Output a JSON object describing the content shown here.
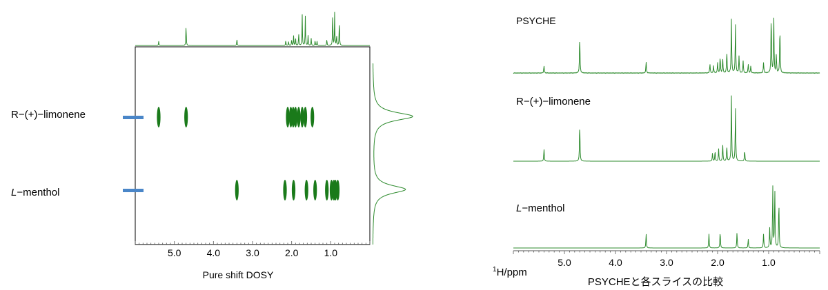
{
  "colors": {
    "spectrum": "#2e8b2e",
    "contour": "#1a7a1a",
    "marker": "#4a86c8",
    "axis": "#555555",
    "frame": "#000000"
  },
  "left_panel": {
    "xlabel": "Pure shift DOSY",
    "row_labels": [
      {
        "prefix": "",
        "italic": "",
        "text": "R−(+)−limonene"
      },
      {
        "prefix": "",
        "italic": "L",
        "text": "−menthol"
      }
    ]
  },
  "right_panel": {
    "trace_labels": [
      {
        "italic": "",
        "text": "PSYCHE"
      },
      {
        "italic": "",
        "text": "R−(+)−limonene"
      },
      {
        "italic": "L",
        "text": "−menthol"
      }
    ],
    "unit_sup": "1",
    "unit_text": "H/ppm",
    "caption": "PSYCHEと各スライスの比較"
  },
  "chart_data": [
    {
      "type": "heatmap",
      "title": "",
      "xlabel": "Pure shift DOSY",
      "x_reversed": true,
      "xlim": [
        6.0,
        0.0
      ],
      "x_ticks": [
        {
          "value": 5.0,
          "label": "5.0"
        },
        {
          "value": 4.0,
          "label": "4.0"
        },
        {
          "value": 3.0,
          "label": "3.0"
        },
        {
          "value": 2.0,
          "label": "2.0"
        },
        {
          "value": 1.0,
          "label": "1.0"
        }
      ],
      "series": [
        {
          "name": "R−(+)−limonene",
          "shifts": [
            5.4,
            4.7,
            2.1,
            2.02,
            1.96,
            1.9,
            1.82,
            1.73,
            1.65,
            1.47
          ]
        },
        {
          "name": "L−menthol",
          "shifts": [
            3.4,
            2.17,
            1.95,
            1.62,
            1.4,
            1.1,
            0.98,
            0.92,
            0.88,
            0.82
          ]
        }
      ]
    },
    {
      "type": "line",
      "title": "",
      "xlabel": "1H/ppm",
      "x_reversed": true,
      "xlim": [
        6.0,
        0.0
      ],
      "x_ticks": [
        {
          "value": 5.0,
          "label": "5.0"
        },
        {
          "value": 4.0,
          "label": "4.0"
        },
        {
          "value": 3.0,
          "label": "3.0"
        },
        {
          "value": 2.0,
          "label": "2.0"
        },
        {
          "value": 1.0,
          "label": "1.0"
        }
      ],
      "series": [
        {
          "name": "PSYCHE",
          "peaks": [
            {
              "x": 5.4,
              "y": 0.12
            },
            {
              "x": 4.7,
              "y": 0.6
            },
            {
              "x": 3.4,
              "y": 0.19
            },
            {
              "x": 2.15,
              "y": 0.15
            },
            {
              "x": 2.08,
              "y": 0.12
            },
            {
              "x": 2.0,
              "y": 0.17
            },
            {
              "x": 1.95,
              "y": 0.27
            },
            {
              "x": 1.9,
              "y": 0.23
            },
            {
              "x": 1.82,
              "y": 0.35
            },
            {
              "x": 1.73,
              "y": 0.87
            },
            {
              "x": 1.65,
              "y": 0.82
            },
            {
              "x": 1.58,
              "y": 0.28
            },
            {
              "x": 1.5,
              "y": 0.2
            },
            {
              "x": 1.4,
              "y": 0.15
            },
            {
              "x": 1.35,
              "y": 0.12
            },
            {
              "x": 1.1,
              "y": 0.18
            },
            {
              "x": 0.95,
              "y": 0.95
            },
            {
              "x": 0.9,
              "y": 0.92
            },
            {
              "x": 0.85,
              "y": 0.3
            },
            {
              "x": 0.78,
              "y": 0.75
            }
          ]
        },
        {
          "name": "R−(+)−limonene",
          "peaks": [
            {
              "x": 5.4,
              "y": 0.18
            },
            {
              "x": 4.7,
              "y": 0.55
            },
            {
              "x": 2.1,
              "y": 0.12
            },
            {
              "x": 2.05,
              "y": 0.15
            },
            {
              "x": 1.98,
              "y": 0.18
            },
            {
              "x": 1.9,
              "y": 0.24
            },
            {
              "x": 1.82,
              "y": 0.22
            },
            {
              "x": 1.73,
              "y": 0.95
            },
            {
              "x": 1.65,
              "y": 0.8
            },
            {
              "x": 1.47,
              "y": 0.16
            }
          ]
        },
        {
          "name": "L−menthol",
          "peaks": [
            {
              "x": 3.4,
              "y": 0.22
            },
            {
              "x": 2.17,
              "y": 0.22
            },
            {
              "x": 1.95,
              "y": 0.25
            },
            {
              "x": 1.62,
              "y": 0.24
            },
            {
              "x": 1.4,
              "y": 0.14
            },
            {
              "x": 1.1,
              "y": 0.22
            },
            {
              "x": 0.98,
              "y": 0.3
            },
            {
              "x": 0.92,
              "y": 0.95
            },
            {
              "x": 0.88,
              "y": 0.9
            },
            {
              "x": 0.8,
              "y": 0.72
            }
          ]
        }
      ]
    }
  ]
}
